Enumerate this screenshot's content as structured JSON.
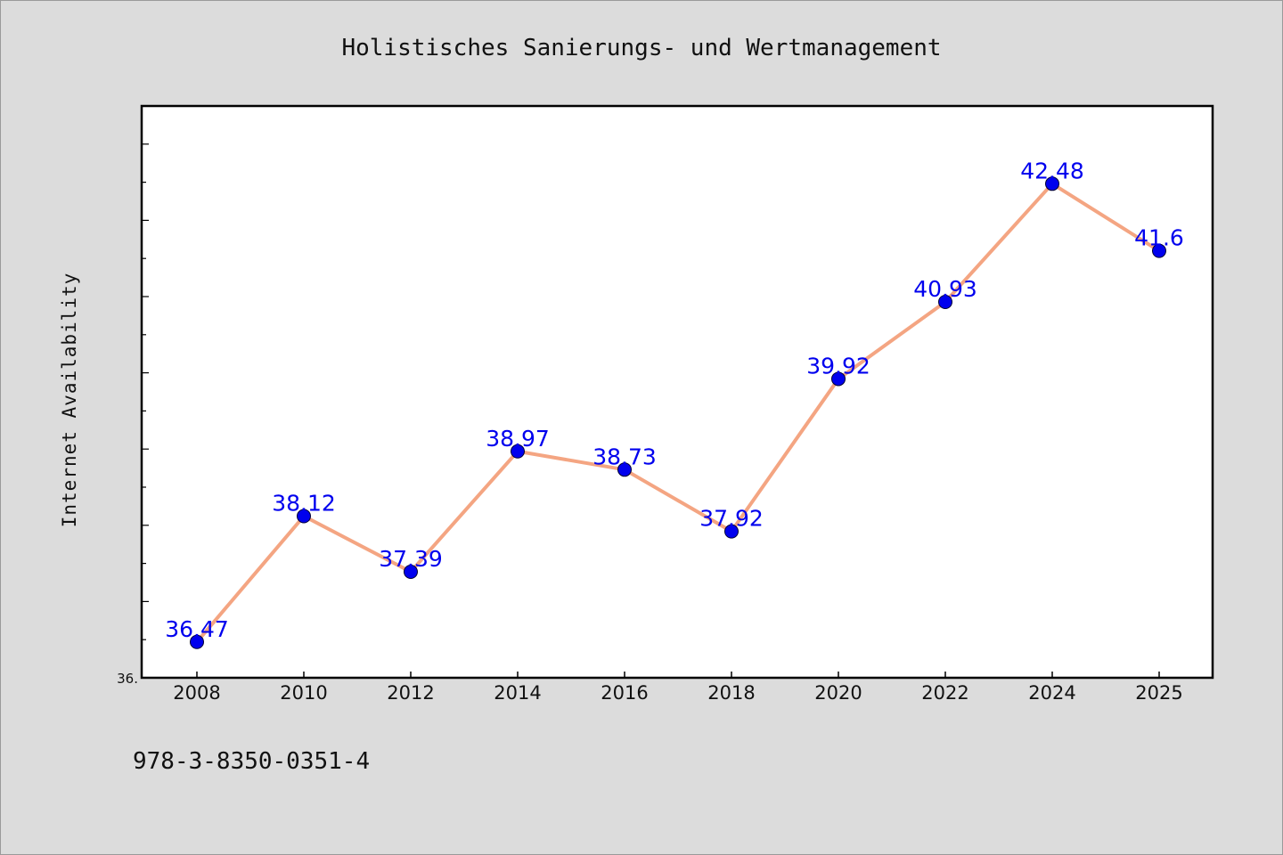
{
  "chart_data": {
    "type": "line",
    "title": "Holistisches Sanierungs- und Wertmanagement",
    "xlabel": "",
    "ylabel": "Internet Availability",
    "categories": [
      "2008",
      "2010",
      "2012",
      "2014",
      "2016",
      "2018",
      "2020",
      "2022",
      "2024",
      "2025"
    ],
    "series": [
      {
        "values": [
          36.47,
          38.12,
          37.39,
          38.97,
          38.73,
          37.92,
          39.92,
          40.93,
          42.48,
          41.6
        ],
        "data_labels": [
          "36.47",
          "38.12",
          "37.39",
          "38.97",
          "38.73",
          "37.92",
          "39.92",
          "40.93",
          "42.48",
          "41.6"
        ],
        "line_color": "#f4a582",
        "marker_color": "#0000ee"
      }
    ],
    "ylim": [
      36.0,
      43.5
    ],
    "y_tick_label": "36.",
    "grid": false,
    "legend": "none"
  },
  "footer": {
    "isbn": "978-3-8350-0351-4"
  },
  "colors": {
    "background": "#dcdcdc",
    "plot_background": "#ffffff",
    "label_color": "#0000ee"
  }
}
